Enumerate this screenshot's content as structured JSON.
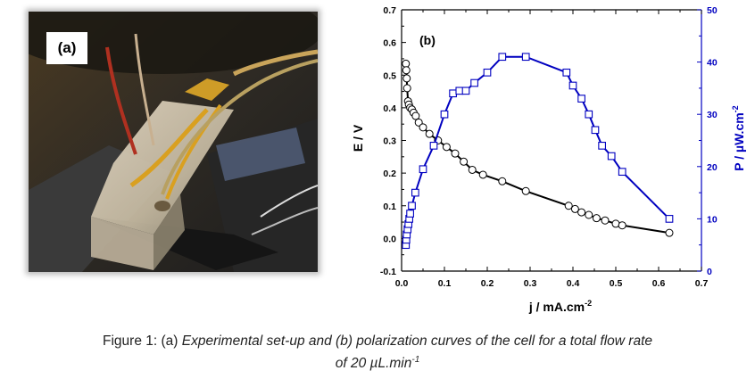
{
  "photo": {
    "panel_label": "(a)",
    "description_icon": "microfluidic-cell-photo-icon"
  },
  "chart_data": {
    "type": "scatter",
    "panel_label": "(b)",
    "xlabel": "j / mA.cm",
    "xlabel_sup": "-2",
    "ylabel_left": "E / V",
    "ylabel_right": "P / µW.cm",
    "ylabel_right_sup": "-2",
    "xlim": [
      0.0,
      0.7
    ],
    "ylim_left": [
      -0.1,
      0.7
    ],
    "ylim_right": [
      0,
      50
    ],
    "x_ticks": [
      "0.0",
      "0.1",
      "0.2",
      "0.3",
      "0.4",
      "0.5",
      "0.6",
      "0.7"
    ],
    "y_left_ticks": [
      "-0.1",
      "0.0",
      "0.1",
      "0.2",
      "0.3",
      "0.4",
      "0.5",
      "0.6",
      "0.7"
    ],
    "y_right_ticks": [
      "0",
      "10",
      "20",
      "30",
      "40",
      "50"
    ],
    "grid": false,
    "colors": {
      "voltage": "#000000",
      "power": "#0000c0"
    },
    "series": [
      {
        "axis": "left",
        "marker": "circle",
        "x": [
          0.01,
          0.011,
          0.012,
          0.013,
          0.015,
          0.017,
          0.02,
          0.024,
          0.028,
          0.033,
          0.04,
          0.05,
          0.065,
          0.085,
          0.105,
          0.125,
          0.145,
          0.165,
          0.19,
          0.235,
          0.29,
          0.39,
          0.405,
          0.42,
          0.437,
          0.455,
          0.475,
          0.5,
          0.515,
          0.625
        ],
        "y": [
          0.535,
          0.515,
          0.49,
          0.46,
          0.42,
          0.41,
          0.4,
          0.395,
          0.385,
          0.375,
          0.355,
          0.34,
          0.32,
          0.3,
          0.28,
          0.26,
          0.235,
          0.21,
          0.195,
          0.175,
          0.145,
          0.1,
          0.09,
          0.08,
          0.072,
          0.062,
          0.055,
          0.045,
          0.04,
          0.017
        ]
      },
      {
        "axis": "right",
        "marker": "square",
        "x": [
          0.01,
          0.011,
          0.012,
          0.014,
          0.016,
          0.018,
          0.02,
          0.024,
          0.032,
          0.05,
          0.075,
          0.1,
          0.12,
          0.135,
          0.15,
          0.17,
          0.2,
          0.235,
          0.29,
          0.385,
          0.4,
          0.42,
          0.437,
          0.452,
          0.468,
          0.49,
          0.515,
          0.625
        ],
        "y": [
          5.0,
          6.0,
          7.0,
          8.0,
          9.0,
          10.0,
          11.0,
          12.5,
          15.0,
          19.5,
          24.0,
          30.0,
          34.0,
          34.5,
          34.5,
          36.0,
          38.0,
          41.0,
          41.0,
          38.0,
          35.5,
          33.0,
          30.0,
          27.0,
          24.0,
          22.0,
          19.0,
          10.0
        ]
      }
    ]
  },
  "caption": {
    "prefix": "Figure 1: (a) ",
    "line1_italic": "Experimental set-up and (b) polarization curves of the cell for a total flow rate",
    "line2_italic": "of 20 µL.min",
    "line2_sup": "-1"
  }
}
